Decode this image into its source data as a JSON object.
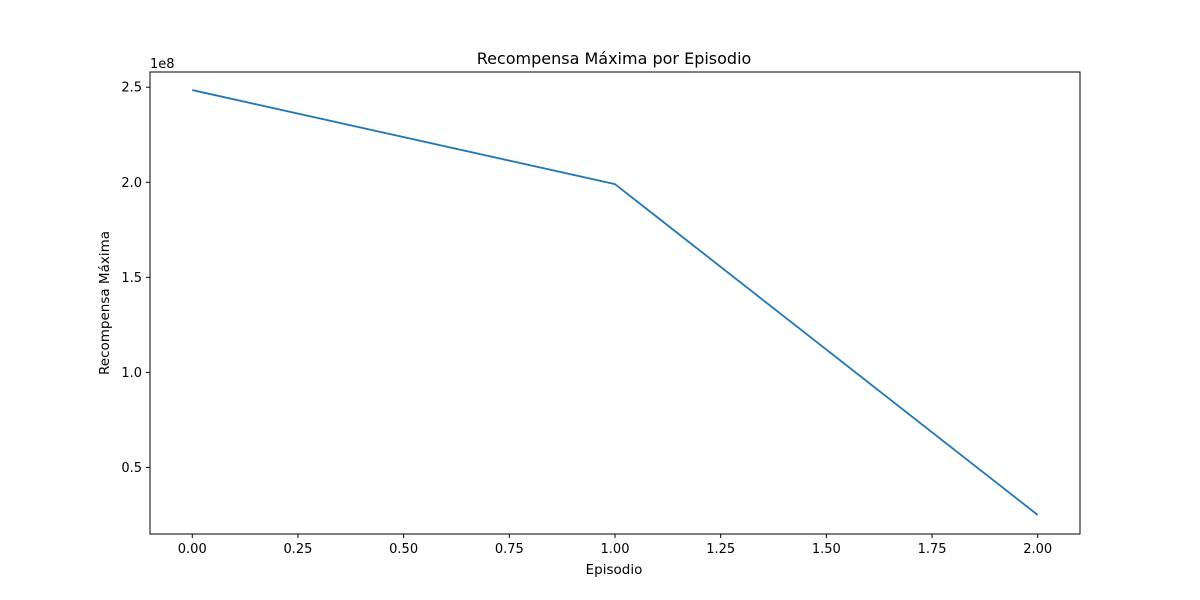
{
  "chart_data": {
    "type": "line",
    "title": "Recompensa Máxima por Episodio",
    "xlabel": "Episodio",
    "ylabel": "Recompensa Máxima",
    "y_offset_label": "1e8",
    "x": [
      0,
      1,
      2
    ],
    "series": [
      {
        "values": [
          248500000,
          199000000,
          25000000
        ],
        "color": "#1f77b4"
      }
    ],
    "xlim": [
      -0.1,
      2.1
    ],
    "ylim": [
      15000000,
      258000000
    ],
    "x_ticks": [
      0.0,
      0.25,
      0.5,
      0.75,
      1.0,
      1.25,
      1.5,
      1.75,
      2.0
    ],
    "x_tick_labels": [
      "0.00",
      "0.25",
      "0.50",
      "0.75",
      "1.00",
      "1.25",
      "1.50",
      "1.75",
      "2.00"
    ],
    "y_ticks": [
      50000000,
      100000000,
      150000000,
      200000000,
      250000000
    ],
    "y_tick_labels": [
      "0.5",
      "1.0",
      "1.5",
      "2.0",
      "2.5"
    ],
    "grid": false,
    "legend": "none"
  }
}
